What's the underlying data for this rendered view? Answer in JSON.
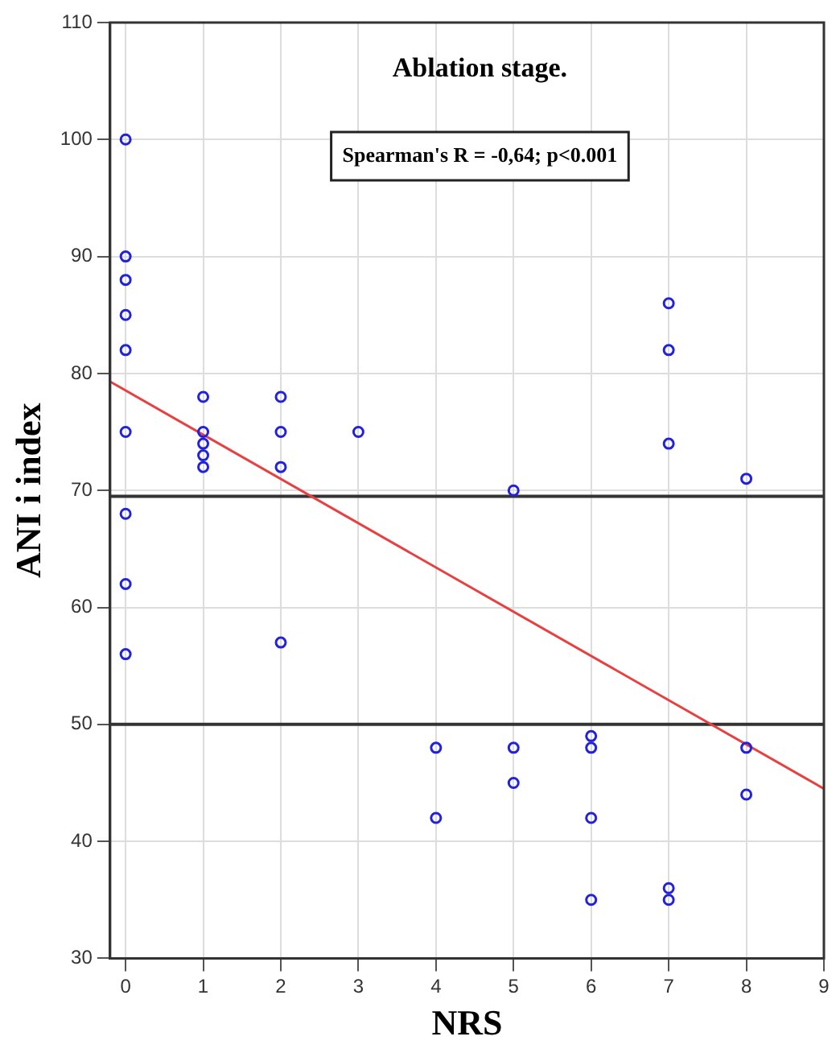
{
  "chart_data": {
    "type": "scatter",
    "title": "Ablation stage.",
    "xlabel": "NRS",
    "ylabel": "ANI i index",
    "annotations": [
      "Spearman's R = -0,64; p<0.001"
    ],
    "xlim": [
      -0.2,
      9
    ],
    "xticks": [
      0,
      1,
      2,
      3,
      4,
      5,
      6,
      7,
      8,
      9
    ],
    "ylim": [
      30,
      110
    ],
    "yticks": [
      30,
      40,
      50,
      60,
      70,
      80,
      90,
      100,
      110
    ],
    "grid": true,
    "legend": false,
    "marker": "circle",
    "ref_lines": [
      {
        "axis": "y",
        "value": 69.5,
        "color": "#333333"
      },
      {
        "axis": "y",
        "value": 50,
        "color": "#333333"
      }
    ],
    "series": [
      {
        "type": "scatter",
        "color": "#2222dd",
        "x": [
          0,
          0,
          0,
          0,
          0,
          0,
          0,
          0,
          0,
          1,
          1,
          1,
          1,
          1,
          2,
          2,
          2,
          2,
          3,
          4,
          4,
          5,
          5,
          5,
          6,
          6,
          6,
          6,
          7,
          7,
          7,
          7,
          7,
          8,
          8,
          8
        ],
        "values": [
          100,
          90,
          88,
          85,
          82,
          75,
          68,
          62,
          56,
          78,
          75,
          74,
          73,
          72,
          78,
          75,
          72,
          57,
          75,
          48,
          42,
          70,
          48,
          45,
          49,
          48,
          42,
          35,
          86,
          82,
          74,
          36,
          35,
          71,
          48,
          44
        ]
      },
      {
        "type": "line",
        "color": "#e84040",
        "x": [
          -0.2,
          9
        ],
        "values": [
          79.3,
          44.5
        ],
        "marker": "none"
      }
    ]
  }
}
